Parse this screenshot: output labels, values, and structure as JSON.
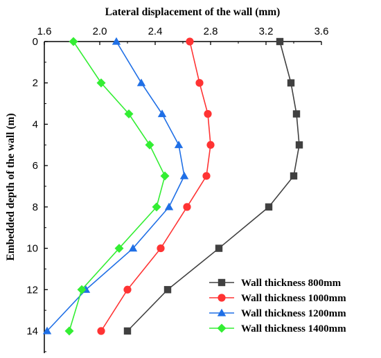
{
  "chart_data": {
    "type": "line",
    "xlabel": "Lateral displacement of the wall (mm)",
    "ylabel": "Embedded depth of the wall (m)",
    "xlim": [
      1.6,
      3.6
    ],
    "ylim": [
      0,
      14
    ],
    "x_ticks": [
      "1.6",
      "2.0",
      "2.4",
      "2.8",
      "3.2",
      "3.6"
    ],
    "y_ticks": [
      "0",
      "2",
      "4",
      "6",
      "8",
      "10",
      "12",
      "14"
    ],
    "x_axis_position": "top",
    "y_axis_inverted": true,
    "grid": false,
    "legend_position": "bottom-right",
    "series": [
      {
        "name": "Wall thickness 800mm",
        "color": "#404040",
        "marker": "square",
        "points": [
          {
            "x": 3.3,
            "y": 0
          },
          {
            "x": 3.38,
            "y": 2
          },
          {
            "x": 3.42,
            "y": 3.5
          },
          {
            "x": 3.44,
            "y": 5
          },
          {
            "x": 3.4,
            "y": 6.5
          },
          {
            "x": 3.22,
            "y": 8
          },
          {
            "x": 2.86,
            "y": 10
          },
          {
            "x": 2.49,
            "y": 12
          },
          {
            "x": 2.2,
            "y": 14
          }
        ]
      },
      {
        "name": "Wall thickness 1000mm",
        "color": "#ff3333",
        "marker": "circle",
        "points": [
          {
            "x": 2.65,
            "y": 0
          },
          {
            "x": 2.72,
            "y": 2
          },
          {
            "x": 2.78,
            "y": 3.5
          },
          {
            "x": 2.8,
            "y": 5
          },
          {
            "x": 2.77,
            "y": 6.5
          },
          {
            "x": 2.63,
            "y": 8
          },
          {
            "x": 2.44,
            "y": 10
          },
          {
            "x": 2.2,
            "y": 12
          },
          {
            "x": 2.01,
            "y": 14
          }
        ]
      },
      {
        "name": "Wall thickness 1200mm",
        "color": "#1f6fe6",
        "marker": "triangle",
        "points": [
          {
            "x": 2.12,
            "y": 0
          },
          {
            "x": 2.3,
            "y": 2
          },
          {
            "x": 2.45,
            "y": 3.5
          },
          {
            "x": 2.57,
            "y": 5
          },
          {
            "x": 2.61,
            "y": 6.5
          },
          {
            "x": 2.5,
            "y": 8
          },
          {
            "x": 2.24,
            "y": 10
          },
          {
            "x": 1.9,
            "y": 12
          },
          {
            "x": 1.62,
            "y": 14
          }
        ]
      },
      {
        "name": "Wall thickness 1400mm",
        "color": "#33ee33",
        "marker": "diamond",
        "points": [
          {
            "x": 1.81,
            "y": 0
          },
          {
            "x": 2.01,
            "y": 2
          },
          {
            "x": 2.21,
            "y": 3.5
          },
          {
            "x": 2.36,
            "y": 5
          },
          {
            "x": 2.47,
            "y": 6.5
          },
          {
            "x": 2.41,
            "y": 8
          },
          {
            "x": 2.14,
            "y": 10
          },
          {
            "x": 1.87,
            "y": 12
          },
          {
            "x": 1.78,
            "y": 14
          }
        ]
      }
    ]
  }
}
